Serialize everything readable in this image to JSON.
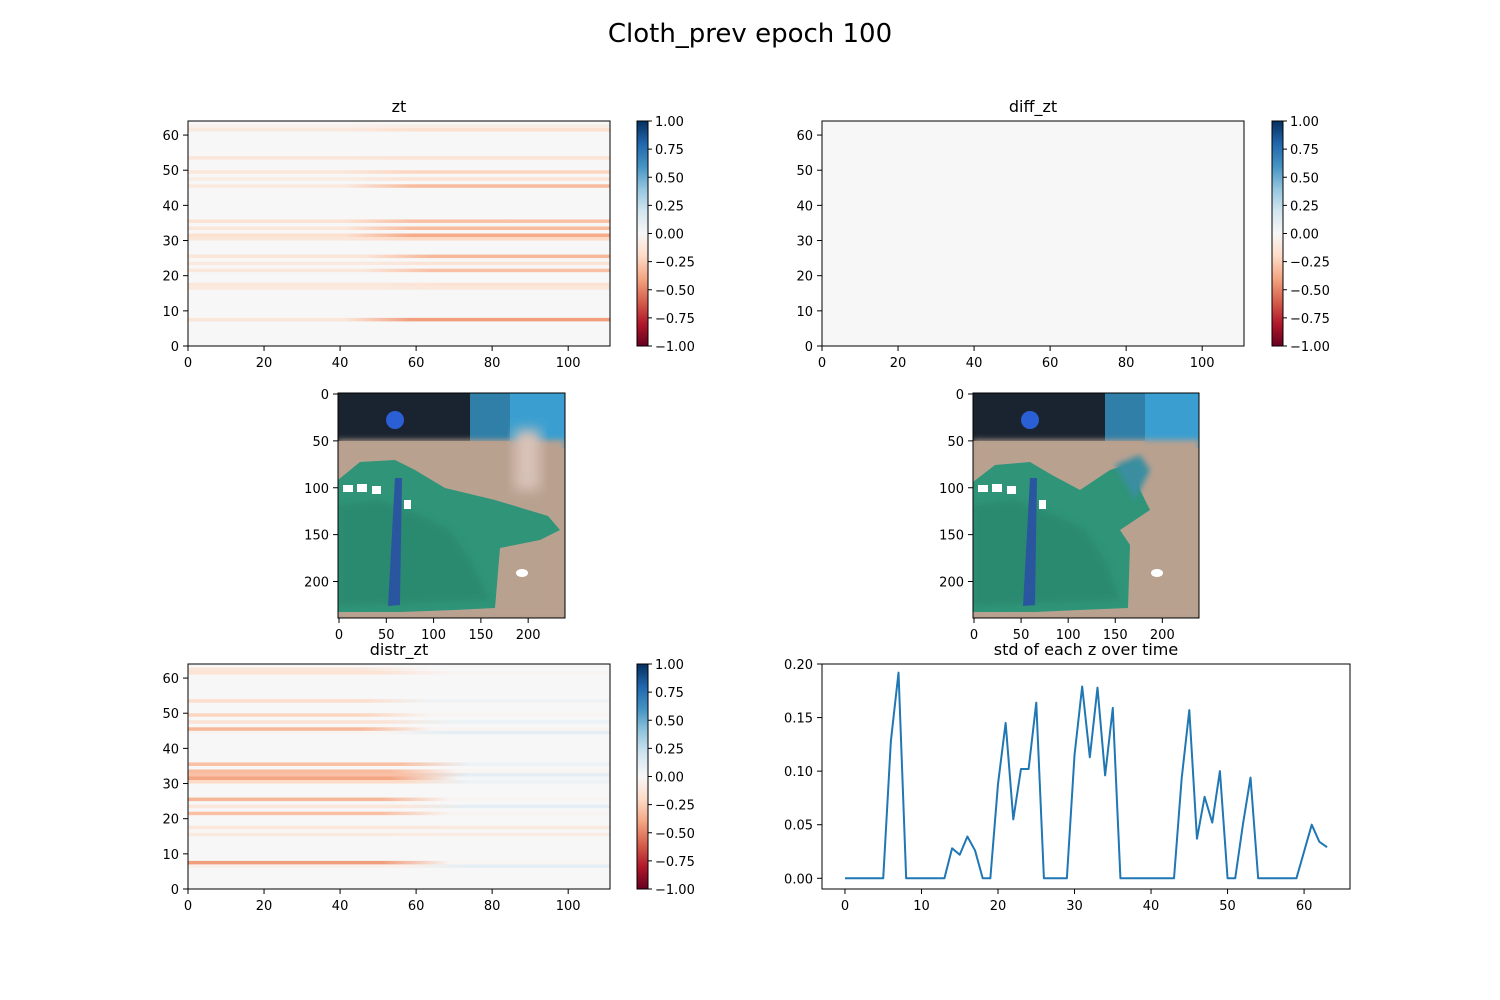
{
  "figure": {
    "title": "Cloth_prev epoch 100"
  },
  "colors": {
    "line": "#1f77b4",
    "colormap": [
      "#67001f",
      "#b2182b",
      "#d6604d",
      "#f4a582",
      "#fddbc7",
      "#f7f7f7",
      "#d1e5f0",
      "#92c5de",
      "#4393c3",
      "#2166ac",
      "#053061"
    ]
  },
  "chart_data": [
    {
      "name": "zt",
      "type": "heatmap",
      "title": "zt",
      "x_range": [
        0,
        111
      ],
      "y_range": [
        0,
        64
      ],
      "xticks": [
        0,
        20,
        40,
        60,
        80,
        100
      ],
      "yticks": [
        0,
        10,
        20,
        30,
        40,
        50,
        60
      ],
      "value_range": [
        -1,
        1
      ],
      "colorbar_ticks": [
        "1.00",
        "0.75",
        "0.50",
        "0.25",
        "0.00",
        "−0.25",
        "−0.50",
        "−0.75",
        "−1.00"
      ],
      "rows": [
        {
          "y": 7,
          "start": -0.12,
          "end": -0.42,
          "mid_x": 50
        },
        {
          "y": 16,
          "start": -0.1,
          "end": -0.12,
          "mid_x": 60
        },
        {
          "y": 17,
          "start": -0.12,
          "end": -0.15,
          "mid_x": 60
        },
        {
          "y": 21,
          "start": -0.12,
          "end": -0.3,
          "mid_x": 55
        },
        {
          "y": 23,
          "start": -0.1,
          "end": -0.14,
          "mid_x": 55
        },
        {
          "y": 25,
          "start": -0.12,
          "end": -0.33,
          "mid_x": 55
        },
        {
          "y": 30,
          "start": -0.12,
          "end": -0.2,
          "mid_x": 50
        },
        {
          "y": 31,
          "start": -0.16,
          "end": -0.38,
          "mid_x": 50
        },
        {
          "y": 33,
          "start": -0.12,
          "end": -0.32,
          "mid_x": 50
        },
        {
          "y": 35,
          "start": -0.15,
          "end": -0.3,
          "mid_x": 50
        },
        {
          "y": 45,
          "start": -0.1,
          "end": -0.32,
          "mid_x": 50
        },
        {
          "y": 47,
          "start": -0.08,
          "end": -0.15,
          "mid_x": 50
        },
        {
          "y": 49,
          "start": -0.12,
          "end": -0.22,
          "mid_x": 50
        },
        {
          "y": 53,
          "start": -0.12,
          "end": -0.14,
          "mid_x": 50
        },
        {
          "y": 61,
          "start": -0.1,
          "end": -0.16,
          "mid_x": 50
        },
        {
          "y": 62,
          "start": -0.05,
          "end": -0.08,
          "mid_x": 50
        }
      ]
    },
    {
      "name": "diff_zt",
      "type": "heatmap",
      "title": "diff_zt",
      "x_range": [
        0,
        111
      ],
      "y_range": [
        0,
        64
      ],
      "xticks": [
        0,
        20,
        40,
        60,
        80,
        100
      ],
      "yticks": [
        0,
        10,
        20,
        30,
        40,
        50,
        60
      ],
      "value_range": [
        -1,
        1
      ],
      "colorbar_ticks": [
        "1.00",
        "0.75",
        "0.50",
        "0.25",
        "0.00",
        "−0.25",
        "−0.50",
        "−0.75",
        "−1.00"
      ],
      "rows": []
    },
    {
      "name": "distr_zt",
      "type": "heatmap",
      "title": "distr_zt",
      "x_range": [
        0,
        111
      ],
      "y_range": [
        0,
        64
      ],
      "xticks": [
        0,
        20,
        40,
        60,
        80,
        100
      ],
      "yticks": [
        0,
        10,
        20,
        30,
        40,
        50,
        60
      ],
      "value_range": [
        -1,
        1
      ],
      "colorbar_ticks": [
        "1.00",
        "0.75",
        "0.50",
        "0.25",
        "0.00",
        "−0.25",
        "−0.50",
        "−0.75",
        "−1.00"
      ],
      "rows": [
        {
          "y": 6,
          "start": -0.05,
          "end": 0.1,
          "mid_x": 65
        },
        {
          "y": 7,
          "start": -0.42,
          "end": -0.02,
          "mid_x": 60
        },
        {
          "y": 15,
          "start": -0.1,
          "end": -0.08,
          "mid_x": 60
        },
        {
          "y": 17,
          "start": -0.12,
          "end": -0.1,
          "mid_x": 60
        },
        {
          "y": 21,
          "start": -0.3,
          "end": -0.02,
          "mid_x": 60
        },
        {
          "y": 23,
          "start": -0.12,
          "end": 0.1,
          "mid_x": 65
        },
        {
          "y": 25,
          "start": -0.34,
          "end": -0.02,
          "mid_x": 60
        },
        {
          "y": 30,
          "start": -0.2,
          "end": 0.06,
          "mid_x": 65
        },
        {
          "y": 31,
          "start": -0.4,
          "end": 0.02,
          "mid_x": 62
        },
        {
          "y": 32,
          "start": -0.3,
          "end": 0.1,
          "mid_x": 65
        },
        {
          "y": 33,
          "start": -0.32,
          "end": -0.02,
          "mid_x": 62
        },
        {
          "y": 35,
          "start": -0.3,
          "end": 0.06,
          "mid_x": 65
        },
        {
          "y": 44,
          "start": -0.02,
          "end": 0.1,
          "mid_x": 60
        },
        {
          "y": 45,
          "start": -0.33,
          "end": -0.02,
          "mid_x": 55
        },
        {
          "y": 47,
          "start": -0.14,
          "end": 0.06,
          "mid_x": 60
        },
        {
          "y": 49,
          "start": -0.22,
          "end": -0.02,
          "mid_x": 55
        },
        {
          "y": 53,
          "start": -0.18,
          "end": 0.04,
          "mid_x": 55
        },
        {
          "y": 61,
          "start": -0.14,
          "end": -0.02,
          "mid_x": 60
        },
        {
          "y": 62,
          "start": -0.12,
          "end": 0.0,
          "mid_x": 55
        }
      ]
    },
    {
      "name": "std",
      "type": "line",
      "title": "std of each z over time",
      "xlim": [
        -3,
        66
      ],
      "ylim": [
        -0.01,
        0.2
      ],
      "xticks": [
        0,
        10,
        20,
        30,
        40,
        50,
        60
      ],
      "yticks": [
        0.0,
        0.05,
        0.1,
        0.15,
        0.2
      ],
      "ytick_labels": [
        "0.00",
        "0.05",
        "0.10",
        "0.15",
        "0.20"
      ],
      "x": [
        0,
        1,
        2,
        3,
        4,
        5,
        6,
        7,
        8,
        9,
        10,
        11,
        12,
        13,
        14,
        15,
        16,
        17,
        18,
        19,
        20,
        21,
        22,
        23,
        24,
        25,
        26,
        27,
        28,
        29,
        30,
        31,
        32,
        33,
        34,
        35,
        36,
        37,
        38,
        39,
        40,
        41,
        42,
        43,
        44,
        45,
        46,
        47,
        48,
        49,
        50,
        51,
        52,
        53,
        54,
        55,
        56,
        57,
        58,
        59,
        60,
        61,
        62,
        63
      ],
      "y": [
        0,
        0,
        0,
        0,
        0,
        0,
        0.128,
        0.192,
        0,
        0,
        0,
        0,
        0,
        0,
        0.028,
        0.022,
        0.039,
        0.026,
        0,
        0,
        0.088,
        0.145,
        0.055,
        0.102,
        0.102,
        0.164,
        0,
        0,
        0,
        0,
        0.115,
        0.179,
        0.113,
        0.178,
        0.096,
        0.159,
        0,
        0,
        0,
        0,
        0,
        0,
        0,
        0,
        0.093,
        0.157,
        0.037,
        0.076,
        0.052,
        0.1,
        0,
        0,
        0.05,
        0.094,
        0,
        0,
        0,
        0,
        0,
        0,
        0.025,
        0.05,
        0.034,
        0.029
      ]
    }
  ],
  "image_panels": [
    {
      "name": "frame-previous",
      "xlim": [
        0,
        240
      ],
      "ylim": [
        0,
        240
      ],
      "xticks": [
        0,
        50,
        100,
        150,
        200
      ],
      "yticks": [
        0,
        50,
        100,
        150,
        200
      ]
    },
    {
      "name": "frame-predicted",
      "xlim": [
        0,
        240
      ],
      "ylim": [
        0,
        240
      ],
      "xticks": [
        0,
        50,
        100,
        150,
        200
      ],
      "yticks": [
        0,
        50,
        100,
        150,
        200
      ]
    }
  ]
}
